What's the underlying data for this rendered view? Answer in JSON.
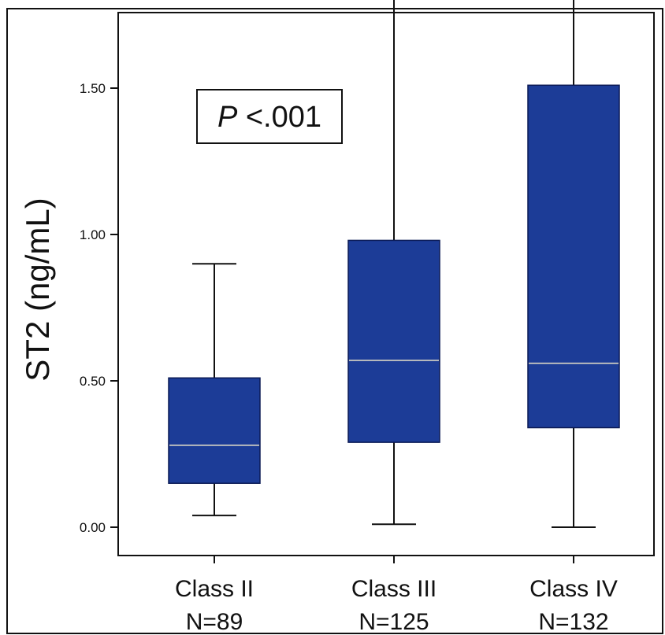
{
  "chart_data": {
    "type": "box",
    "ylabel": "ST2 (ng/mL)",
    "ylim": [
      -0.2,
      3.5
    ],
    "yticks": [
      "0.00",
      "0.50",
      "1.00",
      "1.50",
      "2.00",
      "2.50",
      "3.00",
      "3.50"
    ],
    "grid": false,
    "annotation": {
      "prefix": "P",
      "text": " <.001"
    },
    "categories": [
      {
        "label": "Class II",
        "n": "N=89",
        "whisker_low": 0.04,
        "q1": 0.15,
        "median": 0.28,
        "q3": 0.51,
        "whisker_high": 0.9
      },
      {
        "label": "Class III",
        "n": "N=125",
        "whisker_low": 0.01,
        "q1": 0.29,
        "median": 0.57,
        "q3": 0.98,
        "whisker_high": 1.98
      },
      {
        "label": "Class IV",
        "n": "N=132",
        "whisker_low": 0.0,
        "q1": 0.34,
        "median": 0.56,
        "q3": 1.51,
        "whisker_high": 3.07
      }
    ],
    "colors": {
      "box_fill": "#1c3c97",
      "box_stroke": "#0b1a55",
      "median": "#e8e2c8",
      "whisker": "#111111"
    }
  }
}
